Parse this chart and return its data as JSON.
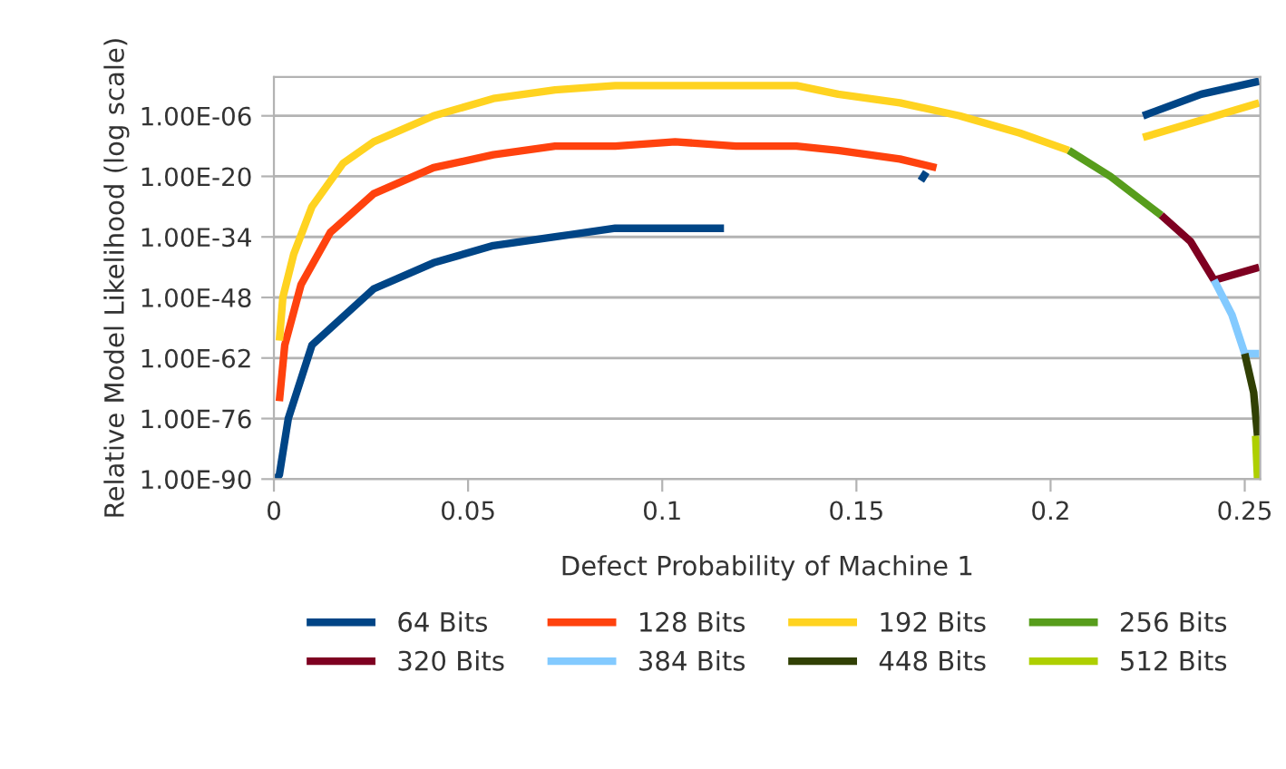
{
  "chart_data": {
    "type": "line",
    "xlabel": "Defect Probability of Machine 1",
    "ylabel": "Relative Model Likelihood (log scale)",
    "log": "y",
    "grid": "y",
    "legend": "bottom",
    "marker": "none",
    "line_style": "solid",
    "xlim": [
      0,
      0.254
    ],
    "xticks": [
      0,
      0.05,
      0.1,
      0.15,
      0.2,
      0.25
    ],
    "ylim": [
      1e-90,
      1000.0
    ],
    "yticks": [
      {
        "value": 1e-90,
        "label": "1.00E-90"
      },
      {
        "value": 1e-76,
        "label": "1.00E-76"
      },
      {
        "value": 1e-62,
        "label": "1.00E-62"
      },
      {
        "value": 1e-48,
        "label": "1.00E-48"
      },
      {
        "value": 1e-34,
        "label": "1.00E-34"
      },
      {
        "value": 1e-20,
        "label": "1.00E-20"
      },
      {
        "value": 1e-06,
        "label": "1.00E-06"
      }
    ],
    "series": [
      {
        "name": "64 Bits",
        "color": "#004586",
        "x": [
          0.0005,
          0.0014,
          0.0037,
          0.0098,
          0.0257,
          0.0411,
          0.0565,
          0.0724,
          0.0879,
          0.1033,
          0.1159,
          0.14,
          0.1666,
          0.168,
          0.2,
          0.2238,
          0.2388,
          0.2537
        ],
        "values": [
          1e-90,
          1e-89,
          1e-76,
          1e-59,
          1e-46,
          1e-40,
          1e-36,
          1e-34,
          1e-32,
          1e-32,
          1e-32,
          null,
          1e-21,
          1e-19,
          null,
          1e-06,
          0.1,
          100.0
        ]
      },
      {
        "name": "128 Bits",
        "color": "#ff420e",
        "x": [
          0.0014,
          0.0028,
          0.007,
          0.0145,
          0.0257,
          0.0411,
          0.0565,
          0.0724,
          0.0879,
          0.1033,
          0.119,
          0.1346,
          0.1453,
          0.1612,
          0.1706
        ],
        "values": [
          1e-72,
          1e-59,
          1e-45,
          1e-33,
          1e-24,
          1e-18,
          1e-15,
          1e-13,
          1e-13,
          1e-12,
          1e-13,
          1e-13,
          1e-14,
          1e-16,
          1e-18
        ]
      },
      {
        "name": "192 Bits",
        "color": "#ffd320",
        "x": [
          0.0014,
          0.0023,
          0.0051,
          0.0098,
          0.0178,
          0.0257,
          0.0411,
          0.0565,
          0.0724,
          0.0879,
          0.1033,
          0.119,
          0.1346,
          0.1453,
          0.1612,
          0.1766,
          0.1921,
          0.2047,
          0.215,
          0.2238,
          0.2388,
          0.2537
        ],
        "values": [
          1e-58,
          1e-48,
          1e-38,
          1e-27,
          1e-17,
          1e-12,
          1e-06,
          0.01,
          1.0,
          10.0,
          10.0,
          10.0,
          10.0,
          0.1,
          0.001,
          1e-06,
          1e-10,
          1e-14,
          null,
          1e-11,
          1e-07,
          0.001
        ]
      },
      {
        "name": "256 Bits",
        "color": "#579d1c",
        "x": [
          0.2047,
          0.2154,
          0.2285
        ],
        "values": [
          1e-14,
          1e-20,
          1e-29
        ]
      },
      {
        "name": "320 Bits",
        "color": "#7e0021",
        "x": [
          0.2285,
          0.236,
          0.2421,
          0.2537
        ],
        "values": [
          1e-29,
          1e-35,
          1e-44,
          1e-41
        ]
      },
      {
        "name": "384 Bits",
        "color": "#83caff",
        "x": [
          0.2421,
          0.2467,
          0.25,
          0.2537
        ],
        "values": [
          1e-44,
          1e-52,
          1e-61,
          1e-61
        ]
      },
      {
        "name": "448 Bits",
        "color": "#314004",
        "x": [
          0.25,
          0.2523,
          0.2533
        ],
        "values": [
          1e-61,
          1e-70,
          1e-80
        ]
      },
      {
        "name": "512 Bits",
        "color": "#aecf00",
        "x": [
          0.2528,
          0.2533
        ],
        "values": [
          1e-80,
          1e-90
        ]
      }
    ]
  }
}
